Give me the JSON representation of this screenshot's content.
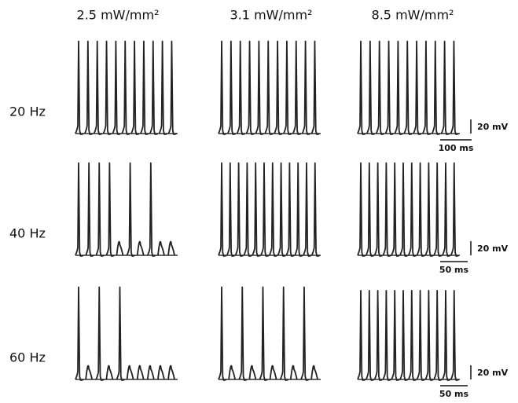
{
  "columns": [
    "2.5 mW/mm²",
    "3.1 mW/mm²",
    "8.5 mW/mm²"
  ],
  "rows": [
    {
      "label": "20 Hz",
      "voltage_bar": "20 mV",
      "time_bar": "100 ms",
      "panels": [
        [
          135,
          135,
          135,
          135,
          135,
          135,
          135,
          135,
          135,
          135,
          135
        ],
        [
          135,
          135,
          135,
          135,
          135,
          135,
          135,
          135,
          135,
          135,
          135
        ],
        [
          135,
          135,
          135,
          135,
          135,
          135,
          135,
          135,
          135,
          135,
          135
        ]
      ]
    },
    {
      "label": "40 Hz",
      "voltage_bar": "20 mV",
      "time_bar": "50 ms",
      "panels": [
        [
          135,
          135,
          135,
          135,
          15,
          135,
          15,
          135,
          15,
          15
        ],
        [
          135,
          135,
          135,
          135,
          135,
          135,
          135,
          135,
          135,
          135,
          135,
          135
        ],
        [
          135,
          135,
          135,
          135,
          135,
          135,
          135,
          135,
          135,
          135,
          135,
          135
        ]
      ]
    },
    {
      "label": "60 Hz",
      "voltage_bar": "20 mV",
      "time_bar": "50 ms",
      "panels": [
        [
          135,
          15,
          135,
          15,
          135,
          15,
          15,
          15,
          15,
          15
        ],
        [
          135,
          15,
          135,
          15,
          135,
          15,
          135,
          15,
          135,
          15
        ],
        [
          130,
          130,
          130,
          130,
          130,
          130,
          130,
          130,
          130,
          130,
          130,
          130
        ]
      ]
    }
  ]
}
